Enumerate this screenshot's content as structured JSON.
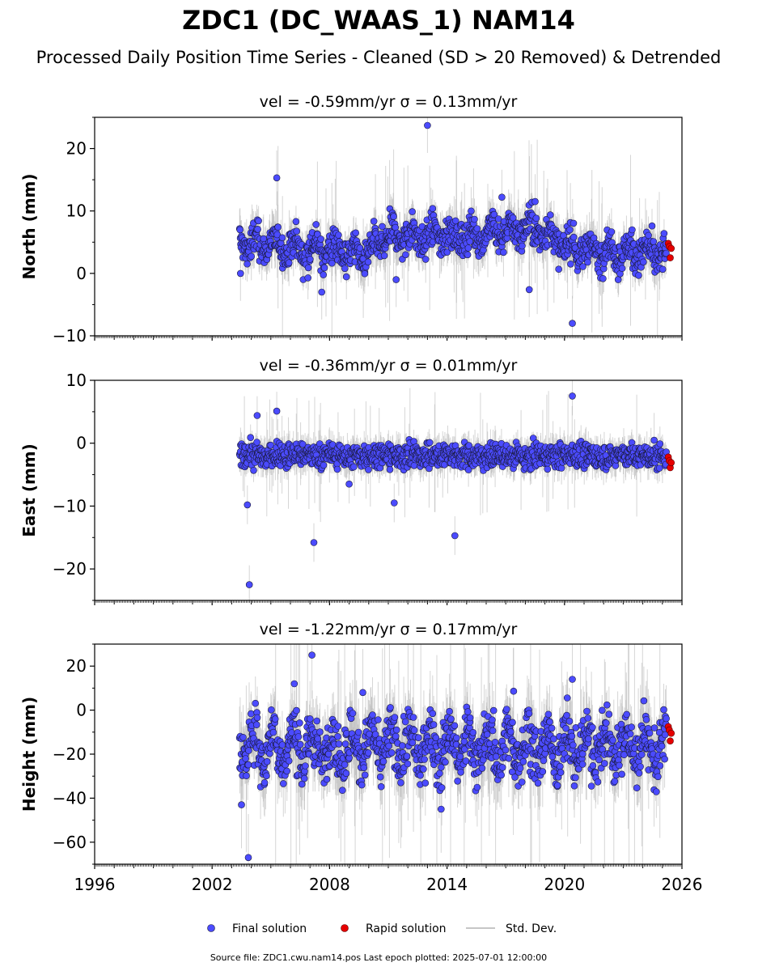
{
  "title": "ZDC1 (DC_WAAS_1) NAM14",
  "subtitle": "Processed Daily Position Time Series - Cleaned (SD > 20 Removed) & Detrended",
  "footer": "Source file: ZDC1.cwu.nam14.pos  Last epoch plotted: 2025-07-01 12:00:00",
  "legend": {
    "final": "Final solution",
    "rapid": "Rapid solution",
    "std": "Std. Dev."
  },
  "colors": {
    "final": "#4b4bff",
    "final_edge": "#1a1a3a",
    "rapid": "#e60000",
    "std": "#b4b4b4"
  },
  "chart_data": {
    "type": "scatter",
    "x_range": [
      1996,
      2026
    ],
    "x_ticks": [
      1996,
      2002,
      2008,
      2014,
      2020,
      2026
    ],
    "x_tick_labels": [
      "1996",
      "2002",
      "2008",
      "2014",
      "2020",
      "2026"
    ],
    "xlabel": "",
    "data_start": 2003.4,
    "data_end": 2025.2,
    "rapid_x": [
      2025.3,
      2025.45
    ],
    "panels": [
      {
        "ylabel": "North (mm)",
        "title": "vel = -0.59mm/yr   σ = 0.13mm/yr",
        "ylim": [
          -10,
          25
        ],
        "yticks": [
          -10,
          0,
          10,
          20
        ],
        "ytick_labels": [
          "−10",
          "0",
          "10",
          "20"
        ],
        "trend": [
          [
            2003.4,
            5
          ],
          [
            2007,
            4
          ],
          [
            2010,
            3
          ],
          [
            2011,
            6
          ],
          [
            2015,
            6
          ],
          [
            2018,
            7
          ],
          [
            2019.5,
            6
          ],
          [
            2020,
            4
          ],
          [
            2025.2,
            3
          ]
        ],
        "spread": 2.0,
        "outliers": [
          [
            2005.3,
            15.3
          ],
          [
            2013.0,
            23.7
          ],
          [
            2020.4,
            -8
          ],
          [
            2007.6,
            -3
          ],
          [
            2018.2,
            -2.6
          ],
          [
            2003.45,
            0
          ],
          [
            2011.4,
            -1
          ],
          [
            2016.8,
            12.2
          ],
          [
            2018.5,
            11.5
          ]
        ],
        "rapid_y": [
          4.8,
          4.3,
          2.5,
          4.0
        ]
      },
      {
        "ylabel": "East (mm)",
        "title": "vel = -0.36mm/yr   σ = 0.01mm/yr",
        "ylim": [
          -25,
          10
        ],
        "yticks": [
          -20,
          -10,
          0,
          10
        ],
        "ytick_labels": [
          "−20",
          "−10",
          "0",
          "10"
        ],
        "trend": [
          [
            2003.4,
            -2
          ],
          [
            2025.2,
            -2
          ]
        ],
        "spread": 1.4,
        "outliers": [
          [
            2003.9,
            -22.5
          ],
          [
            2007.2,
            -15.8
          ],
          [
            2014.4,
            -14.7
          ],
          [
            2020.4,
            7.5
          ],
          [
            2003.8,
            -9.8
          ],
          [
            2004.3,
            4.4
          ],
          [
            2005.3,
            5.1
          ],
          [
            2009.0,
            -6.5
          ],
          [
            2011.3,
            -9.5
          ]
        ],
        "rapid_y": [
          -2.2,
          -2.8,
          -3.9,
          -3.1
        ]
      },
      {
        "ylabel": "Height (mm)",
        "title": "vel = -1.22mm/yr   σ = 0.17mm/yr",
        "ylim": [
          -70,
          30
        ],
        "yticks": [
          -60,
          -40,
          -20,
          0,
          20
        ],
        "ytick_labels": [
          "−60",
          "−40",
          "−20",
          "0",
          "20"
        ],
        "trend": [
          [
            2003.4,
            -17
          ],
          [
            2025.2,
            -17
          ]
        ],
        "spread": 9.0,
        "outliers": [
          [
            2007.1,
            25
          ],
          [
            2003.85,
            -67
          ],
          [
            2003.5,
            -43
          ],
          [
            2020.4,
            14
          ],
          [
            2013.7,
            -45
          ],
          [
            2006.2,
            12
          ],
          [
            2009.7,
            8
          ],
          [
            2017.4,
            8.6
          ]
        ],
        "rapid_y": [
          -7.5,
          -9.0,
          -14.0,
          -10.5
        ]
      }
    ]
  }
}
